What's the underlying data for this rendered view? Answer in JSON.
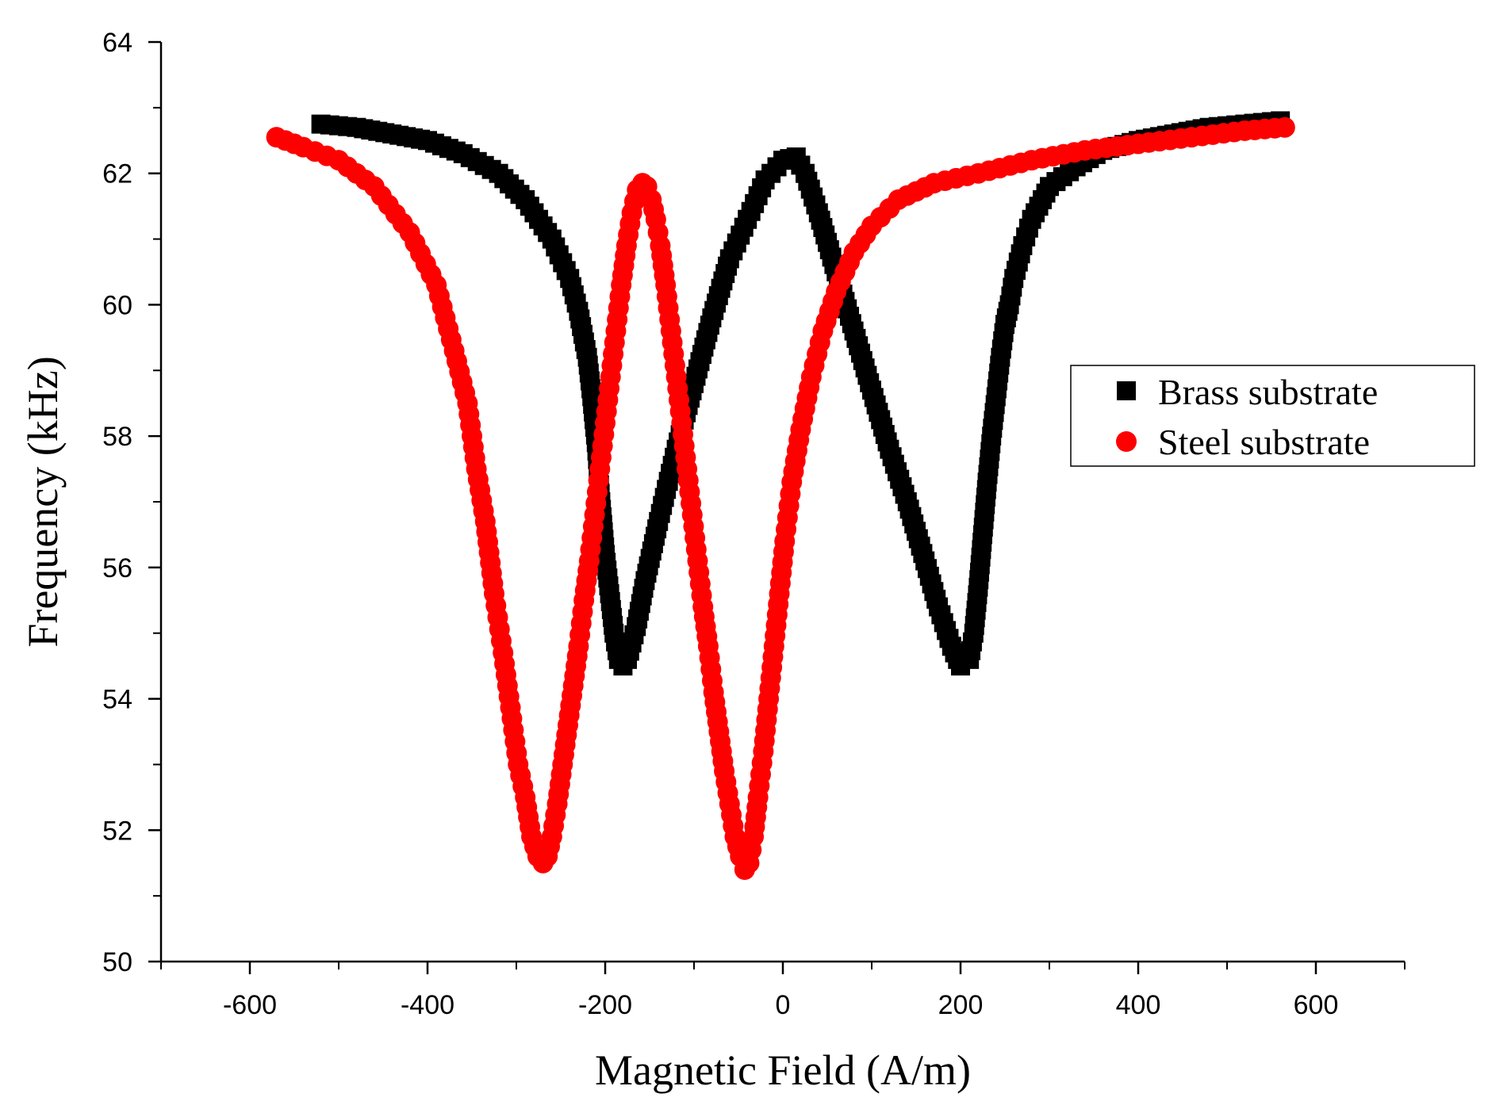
{
  "chart_data": {
    "type": "scatter",
    "title": "",
    "xlabel": "Magnetic Field (A/m)",
    "ylabel": "Frequency (kHz)",
    "xlim": [
      -700,
      700
    ],
    "ylim": [
      50,
      64
    ],
    "x_ticks": [
      -600,
      -400,
      -200,
      0,
      200,
      400,
      600
    ],
    "x_tick_labels": [
      "-600",
      "-400",
      "-200",
      "0",
      "200",
      "400",
      "600"
    ],
    "y_ticks": [
      50,
      52,
      54,
      56,
      58,
      60,
      62,
      64
    ],
    "y_tick_labels": [
      "50",
      "52",
      "54",
      "56",
      "58",
      "60",
      "62",
      "64"
    ],
    "grid": false,
    "legend_position": "right",
    "series": [
      {
        "name": "Brass substrate",
        "marker": "square",
        "color": "#000000",
        "x": [
          -520,
          -480,
          -440,
          -400,
          -360,
          -320,
          -290,
          -260,
          -240,
          -230,
          -220,
          -215,
          -210,
          -205,
          -200,
          -195,
          -190,
          -185,
          -180,
          -175,
          -165,
          -155,
          -140,
          -120,
          -100,
          -80,
          -60,
          -40,
          -20,
          0,
          15,
          25,
          40,
          60,
          80,
          100,
          120,
          140,
          160,
          175,
          190,
          200,
          210,
          215,
          220,
          225,
          230,
          235,
          240,
          245,
          250,
          255,
          260,
          270,
          280,
          300,
          330,
          360,
          400,
          440,
          480,
          520,
          560
        ],
        "y": [
          62.75,
          62.7,
          62.6,
          62.5,
          62.3,
          62.0,
          61.6,
          61.0,
          60.4,
          59.9,
          59.2,
          58.6,
          57.9,
          57.0,
          56.2,
          55.6,
          55.0,
          54.6,
          54.5,
          54.6,
          55.1,
          55.8,
          56.7,
          57.8,
          58.8,
          59.8,
          60.7,
          61.3,
          61.9,
          62.2,
          62.25,
          62.0,
          61.4,
          60.5,
          59.6,
          58.7,
          57.8,
          57.0,
          56.1,
          55.4,
          54.8,
          54.5,
          54.6,
          55.0,
          55.7,
          56.5,
          57.3,
          58.0,
          58.6,
          59.2,
          59.7,
          60.0,
          60.4,
          60.9,
          61.3,
          61.8,
          62.1,
          62.35,
          62.5,
          62.6,
          62.7,
          62.75,
          62.8
        ]
      },
      {
        "name": "Steel substrate",
        "marker": "circle",
        "color": "#ff0000",
        "x": [
          -570,
          -540,
          -500,
          -460,
          -420,
          -390,
          -370,
          -355,
          -345,
          -335,
          -325,
          -315,
          -305,
          -298,
          -290,
          -283,
          -276,
          -270,
          -265,
          -260,
          -254,
          -248,
          -242,
          -236,
          -230,
          -224,
          -218,
          -212,
          -206,
          -200,
          -194,
          -188,
          -182,
          -176,
          -170,
          -164,
          -158,
          -153,
          -148,
          -143,
          -138,
          -132,
          -126,
          -120,
          -114,
          -108,
          -102,
          -96,
          -90,
          -84,
          -78,
          -72,
          -66,
          -60,
          -54,
          -48,
          -43,
          -38,
          -33,
          -28,
          -22,
          -16,
          -10,
          -4,
          2,
          10,
          20,
          32,
          45,
          60,
          80,
          100,
          130,
          170,
          220,
          280,
          340,
          400,
          460,
          520,
          565
        ],
        "y": [
          62.55,
          62.4,
          62.2,
          61.8,
          61.1,
          60.3,
          59.3,
          58.5,
          57.5,
          56.7,
          55.6,
          54.7,
          53.7,
          53.0,
          52.5,
          51.9,
          51.6,
          51.5,
          51.6,
          51.9,
          52.4,
          53.0,
          53.6,
          54.2,
          54.8,
          55.5,
          56.1,
          56.8,
          57.5,
          58.2,
          58.9,
          59.6,
          60.3,
          60.9,
          61.4,
          61.75,
          61.85,
          61.8,
          61.6,
          61.3,
          60.9,
          60.3,
          59.6,
          58.9,
          58.2,
          57.5,
          56.8,
          56.1,
          55.4,
          54.8,
          54.1,
          53.5,
          52.9,
          52.4,
          51.9,
          51.6,
          51.4,
          51.5,
          51.9,
          52.5,
          53.2,
          54.0,
          54.8,
          55.6,
          56.4,
          57.3,
          58.1,
          58.9,
          59.6,
          60.2,
          60.8,
          61.2,
          61.6,
          61.85,
          62.0,
          62.2,
          62.35,
          62.45,
          62.55,
          62.65,
          62.7
        ]
      }
    ]
  }
}
